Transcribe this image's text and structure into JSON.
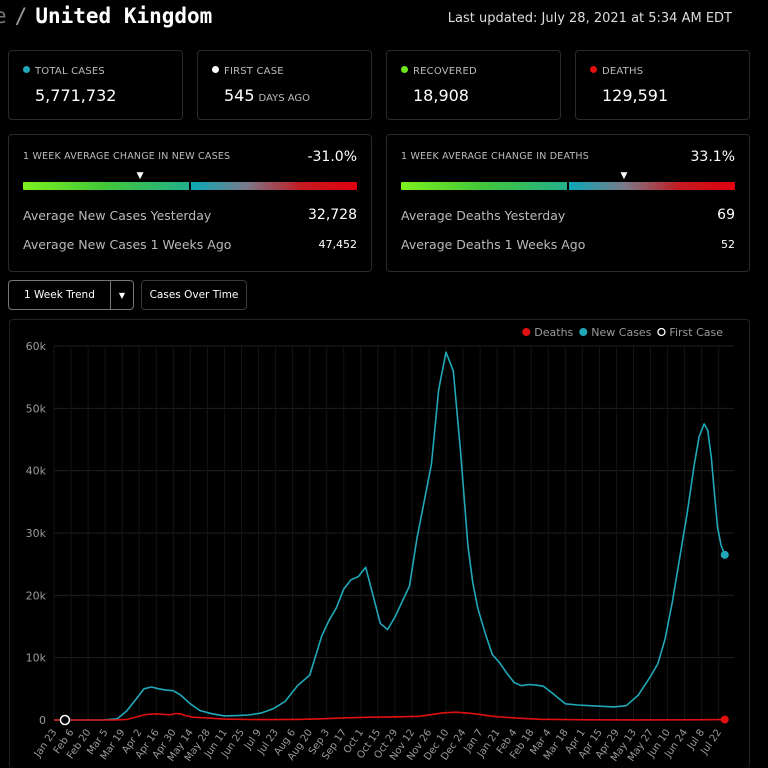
{
  "header": {
    "crumb": "e",
    "separator": "/",
    "country": "United Kingdom",
    "last_updated": "Last updated: July 28, 2021 at 5:34 AM EDT"
  },
  "stats": {
    "total_cases": {
      "label": "TOTAL CASES",
      "value": "5,771,732",
      "color": "#20a8b8"
    },
    "first_case": {
      "label": "FIRST CASE",
      "value": "545",
      "unit": "DAYS AGO",
      "color": "#ffffff"
    },
    "recovered": {
      "label": "RECOVERED",
      "value": "18,908",
      "color": "#6ee81a"
    },
    "deaths": {
      "label": "DEATHS",
      "value": "129,591",
      "color": "#e01010"
    }
  },
  "cases_change": {
    "heading": "1 WEEK AVERAGE CHANGE IN NEW CASES",
    "pct": "-31.0%",
    "marker": 0.35,
    "row1_label": "Average New Cases Yesterday",
    "row1_value": "32,728",
    "row2_label": "Average New Cases 1 Weeks Ago",
    "row2_value": "47,452"
  },
  "deaths_change": {
    "heading": "1 WEEK AVERAGE CHANGE IN DEATHS",
    "pct": "33.1%",
    "marker": 0.665,
    "row1_label": "Average Deaths Yesterday",
    "row1_value": "69",
    "row2_label": "Average Deaths 1 Weeks Ago",
    "row2_value": "52"
  },
  "controls": {
    "trend_select": "1 Week Trend",
    "cases_over_time": "Cases Over Time"
  },
  "chart_data": {
    "type": "line",
    "legend": [
      {
        "name": "Deaths",
        "color": "#e01010",
        "style": "filled"
      },
      {
        "name": "New Cases",
        "color": "#20a8b8",
        "style": "filled"
      },
      {
        "name": "First Case",
        "color": "#ffffff",
        "style": "hollow"
      }
    ],
    "legend_position": "top-right",
    "ylim": [
      0,
      60000
    ],
    "y_ticks": [
      0,
      10000,
      20000,
      30000,
      40000,
      50000,
      60000
    ],
    "y_tick_labels": [
      "0",
      "10k",
      "20k",
      "30k",
      "40k",
      "50k",
      "60k"
    ],
    "x_tick_labels": [
      "Jan 23",
      "Feb 6",
      "Feb 20",
      "Mar 5",
      "Mar 19",
      "Apr 2",
      "Apr 16",
      "Apr 30",
      "May 14",
      "May 28",
      "Jun 11",
      "Jun 25",
      "Jul 9",
      "Jul 23",
      "Aug 6",
      "Aug 20",
      "Sep 3",
      "Sep 17",
      "Oct 1",
      "Oct 15",
      "Oct 29",
      "Nov 12",
      "Nov 26",
      "Dec 10",
      "Dec 24",
      "Jan 7",
      "Jan 21",
      "Feb 4",
      "Feb 18",
      "Mar 4",
      "Mar 18",
      "Apr 1",
      "Apr 15",
      "Apr 29",
      "May 13",
      "May 27",
      "Jun 10",
      "Jun 24",
      "Jul 8",
      "Jul 22"
    ],
    "x_tick_start_day": 0,
    "x_tick_step_days": 14,
    "x_range_days": [
      0,
      552
    ],
    "series": [
      {
        "name": "New Cases",
        "color": "#20a8b8",
        "days": [
          0,
          40,
          52,
          60,
          68,
          74,
          80,
          86,
          92,
          98,
          104,
          112,
          120,
          130,
          140,
          150,
          160,
          170,
          180,
          190,
          200,
          210,
          220,
          226,
          232,
          238,
          244,
          250,
          256,
          262,
          268,
          274,
          280,
          286,
          292,
          298,
          304,
          310,
          316,
          322,
          328,
          334,
          340,
          344,
          348,
          354,
          360,
          366,
          372,
          378,
          384,
          390,
          396,
          402,
          410,
          420,
          430,
          440,
          450,
          460,
          470,
          480,
          490,
          496,
          502,
          508,
          514,
          520,
          526,
          530,
          534,
          537,
          540,
          542,
          545,
          548,
          550,
          551
        ],
        "values": [
          0,
          0,
          200,
          1500,
          3500,
          5000,
          5300,
          5000,
          4800,
          4700,
          4000,
          2600,
          1500,
          1000,
          650,
          700,
          800,
          1100,
          1800,
          3000,
          5500,
          7200,
          13500,
          16000,
          18000,
          21000,
          22500,
          23000,
          24500,
          20000,
          15500,
          14500,
          16500,
          19000,
          21500,
          29000,
          35000,
          41000,
          53000,
          59000,
          56000,
          43000,
          28000,
          22000,
          18000,
          14000,
          10500,
          9200,
          7500,
          6000,
          5500,
          5700,
          5600,
          5400,
          4200,
          2600,
          2400,
          2300,
          2200,
          2100,
          2300,
          4000,
          7000,
          9000,
          13000,
          19000,
          26000,
          33000,
          41000,
          45500,
          47500,
          46500,
          42000,
          37500,
          31000,
          28000,
          27000,
          26500
        ]
      },
      {
        "name": "Deaths",
        "color": "#e01010",
        "days": [
          0,
          50,
          60,
          68,
          76,
          84,
          90,
          96,
          100,
          104,
          108,
          114,
          124,
          140,
          160,
          180,
          200,
          220,
          240,
          260,
          280,
          300,
          320,
          330,
          340,
          350,
          360,
          380,
          400,
          440,
          480,
          520,
          551
        ],
        "values": [
          0,
          0,
          100,
          500,
          900,
          1000,
          900,
          850,
          1050,
          1000,
          700,
          450,
          350,
          150,
          80,
          60,
          100,
          200,
          350,
          450,
          500,
          600,
          1150,
          1250,
          1100,
          900,
          600,
          300,
          120,
          40,
          20,
          40,
          70
        ]
      }
    ],
    "end_points": [
      {
        "series": "New Cases",
        "day": 551,
        "value": 26500
      },
      {
        "series": "Deaths",
        "day": 551,
        "value": 70
      }
    ],
    "first_case_point": {
      "day": 9,
      "value": 0
    }
  }
}
